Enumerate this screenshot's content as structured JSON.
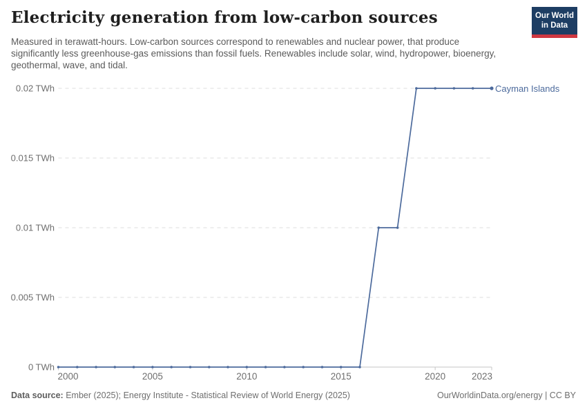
{
  "header": {
    "title": "Electricity generation from low-carbon sources",
    "subtitle": "Measured in terawatt-hours. Low-carbon sources correspond to renewables and nuclear power, that produce significantly less greenhouse-gas emissions than fossil fuels. Renewables include solar, wind, hydropower, bioenergy, geothermal, wave, and tidal.",
    "logo": {
      "line1": "Our World",
      "line2": "in Data",
      "bg_color": "#1d3d63",
      "accent_color": "#cf3741"
    }
  },
  "chart_data": {
    "type": "line",
    "title": "Electricity generation from low-carbon sources",
    "unit": "TWh",
    "xlabel": "",
    "ylabel": "",
    "xlim": [
      2000,
      2023
    ],
    "ylim": [
      0,
      0.02
    ],
    "grid": "horizontal-dashed",
    "legend_position": "end-of-line-label",
    "x_ticks": [
      2000,
      2005,
      2010,
      2015,
      2020,
      2023
    ],
    "y_ticks": [
      {
        "value": 0,
        "label": "0 TWh"
      },
      {
        "value": 0.005,
        "label": "0.005 TWh"
      },
      {
        "value": 0.01,
        "label": "0.01 TWh"
      },
      {
        "value": 0.015,
        "label": "0.015 TWh"
      },
      {
        "value": 0.02,
        "label": "0.02 TWh"
      }
    ],
    "series": [
      {
        "name": "Cayman Islands",
        "color": "#4c6a9c",
        "x": [
          2000,
          2001,
          2002,
          2003,
          2004,
          2005,
          2006,
          2007,
          2008,
          2009,
          2010,
          2011,
          2012,
          2013,
          2014,
          2015,
          2016,
          2017,
          2018,
          2019,
          2020,
          2021,
          2022,
          2023
        ],
        "values": [
          0,
          0,
          0,
          0,
          0,
          0,
          0,
          0,
          0,
          0,
          0,
          0,
          0,
          0,
          0,
          0,
          0,
          0.01,
          0.01,
          0.02,
          0.02,
          0.02,
          0.02,
          0.02
        ]
      }
    ],
    "colors": {
      "line": "#4c6a9c",
      "gridline": "#dcdcdc",
      "axis": "#c6c6c6",
      "tick_label": "#6e6e6e"
    }
  },
  "footer": {
    "datasource_label": "Data source:",
    "datasource_text": " Ember (2025); Energy Institute - Statistical Review of World Energy (2025)",
    "license_text": "OurWorldinData.org/energy | CC BY"
  }
}
